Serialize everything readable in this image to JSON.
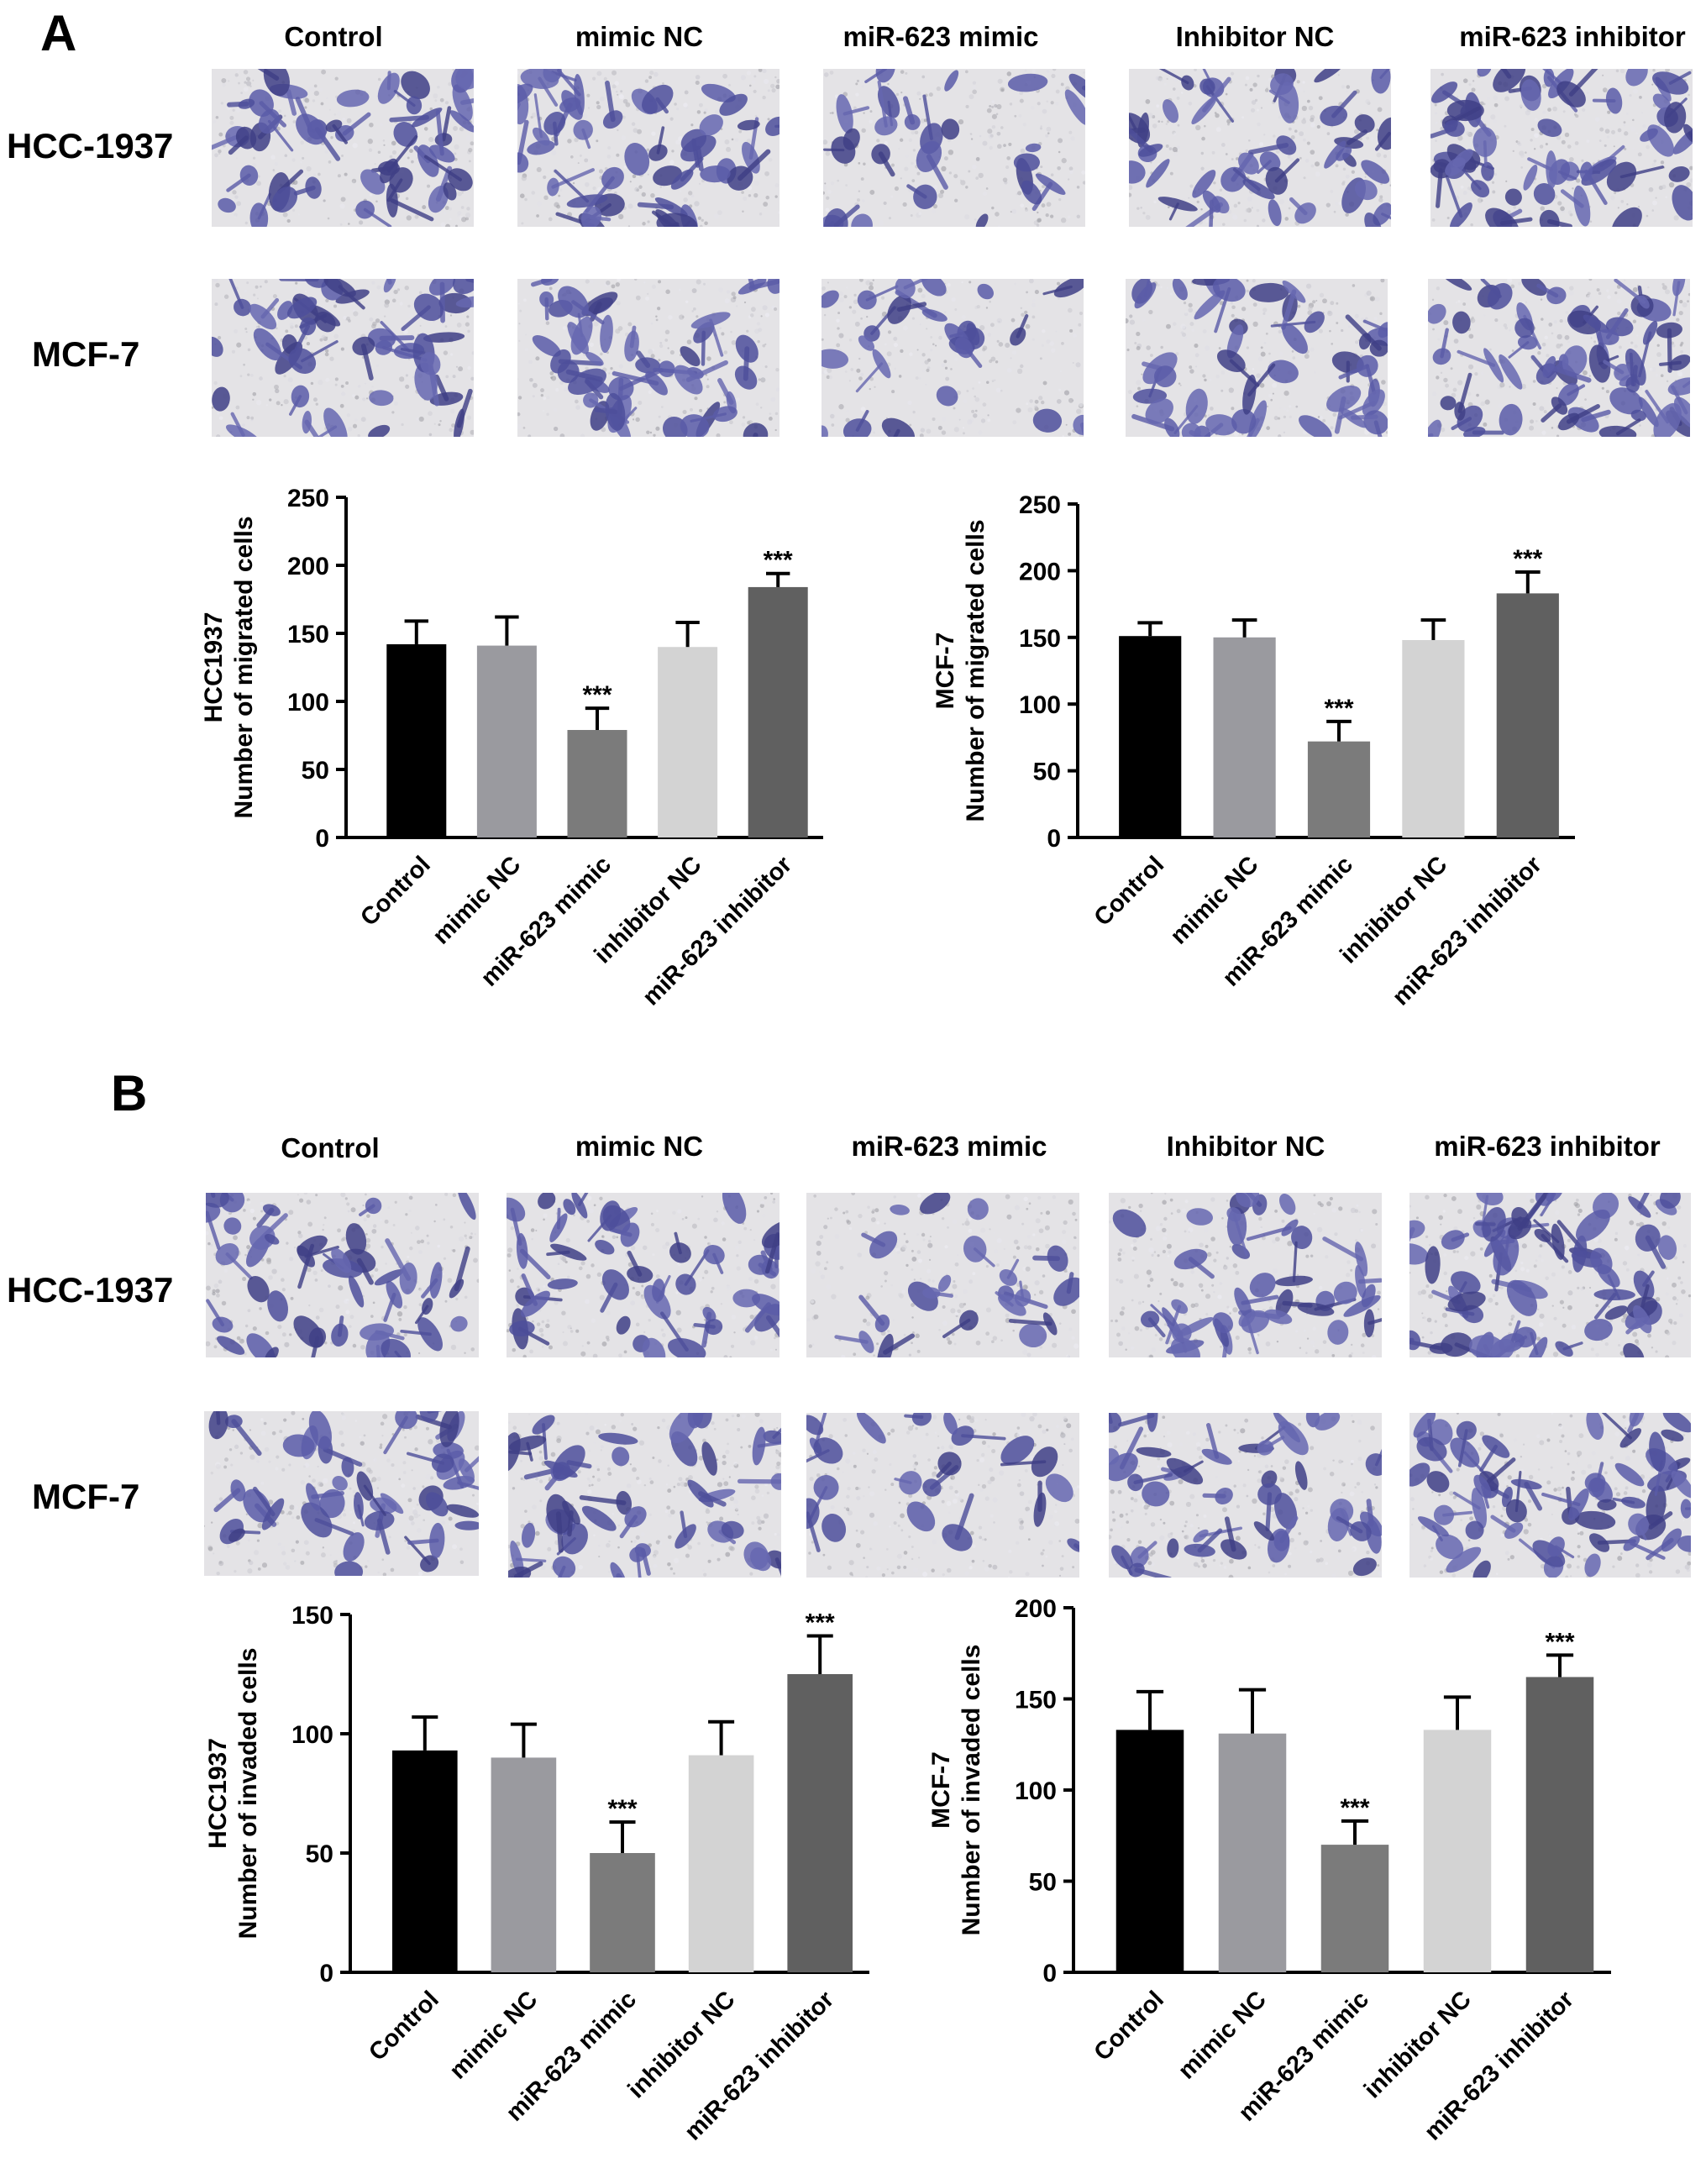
{
  "panels": {
    "A": {
      "letter": "A",
      "columns": [
        "Control",
        "mimic NC",
        "miR-623 mimic",
        "Inhibitor NC",
        "miR-623 inhibitor"
      ],
      "rows": [
        "HCC-1937",
        "MCF-7"
      ]
    },
    "B": {
      "letter": "B",
      "columns": [
        "Control",
        "mimic NC",
        "miR-623 mimic",
        "Inhibitor NC",
        "miR-623 inhibitor"
      ],
      "rows": [
        "HCC-1937",
        "MCF-7"
      ]
    }
  },
  "image_density": {
    "A": [
      [
        0.55,
        0.55,
        0.28,
        0.55,
        0.8
      ],
      [
        0.55,
        0.55,
        0.28,
        0.55,
        0.8
      ]
    ],
    "B": [
      [
        0.5,
        0.5,
        0.18,
        0.5,
        0.8
      ],
      [
        0.5,
        0.5,
        0.18,
        0.5,
        0.8
      ]
    ]
  },
  "chart_data": [
    {
      "id": "A-HCC1937",
      "type": "bar",
      "categories": [
        "Control",
        "mimic NC",
        "miR-623 mimic",
        "inhibitor NC",
        "miR-623 inhibitor"
      ],
      "values": [
        142,
        141,
        79,
        140,
        184
      ],
      "errors": [
        17,
        21,
        16,
        18,
        10
      ],
      "annotations": [
        "",
        "",
        "***",
        "",
        "***"
      ],
      "ylabel_line1": "HCC1937",
      "ylabel_line2": "Number of migrated cells",
      "ylim": [
        0,
        250
      ],
      "yticks": [
        0,
        50,
        100,
        150,
        200,
        250
      ],
      "colors": [
        "#000000",
        "#9a9a9f",
        "#7b7b7b",
        "#d3d3d3",
        "#606060"
      ]
    },
    {
      "id": "A-MCF7",
      "type": "bar",
      "categories": [
        "Control",
        "mimic NC",
        "miR-623 mimic",
        "inhibitor NC",
        "miR-623 inhibitor"
      ],
      "values": [
        151,
        150,
        72,
        148,
        183
      ],
      "errors": [
        10,
        13,
        15,
        15,
        16
      ],
      "annotations": [
        "",
        "",
        "***",
        "",
        "***"
      ],
      "ylabel_line1": "MCF-7",
      "ylabel_line2": "Number of migrated cells",
      "ylim": [
        0,
        250
      ],
      "yticks": [
        0,
        50,
        100,
        150,
        200,
        250
      ],
      "colors": [
        "#000000",
        "#9a9a9f",
        "#7b7b7b",
        "#d3d3d3",
        "#606060"
      ]
    },
    {
      "id": "B-HCC1937",
      "type": "bar",
      "categories": [
        "Control",
        "mimic NC",
        "miR-623 mimic",
        "inhibitor NC",
        "miR-623 inhibitor"
      ],
      "values": [
        93,
        90,
        50,
        91,
        125
      ],
      "errors": [
        14,
        14,
        13,
        14,
        16
      ],
      "annotations": [
        "",
        "",
        "***",
        "",
        "***"
      ],
      "ylabel_line1": "HCC1937",
      "ylabel_line2": "Number of invaded cells",
      "ylim": [
        0,
        150
      ],
      "yticks": [
        0,
        50,
        100,
        150
      ],
      "colors": [
        "#000000",
        "#9a9a9f",
        "#7b7b7b",
        "#d3d3d3",
        "#606060"
      ]
    },
    {
      "id": "B-MCF7",
      "type": "bar",
      "categories": [
        "Control",
        "mimic NC",
        "miR-623 mimic",
        "inhibitor NC",
        "miR-623 inhibitor"
      ],
      "values": [
        133,
        131,
        70,
        133,
        162
      ],
      "errors": [
        21,
        24,
        13,
        18,
        12
      ],
      "annotations": [
        "",
        "",
        "***",
        "",
        "***"
      ],
      "ylabel_line1": "MCF-7",
      "ylabel_line2": "Number of invaded cells",
      "ylim": [
        0,
        200
      ],
      "yticks": [
        0,
        50,
        100,
        150,
        200
      ],
      "colors": [
        "#000000",
        "#9a9a9f",
        "#7b7b7b",
        "#d3d3d3",
        "#606060"
      ]
    }
  ]
}
